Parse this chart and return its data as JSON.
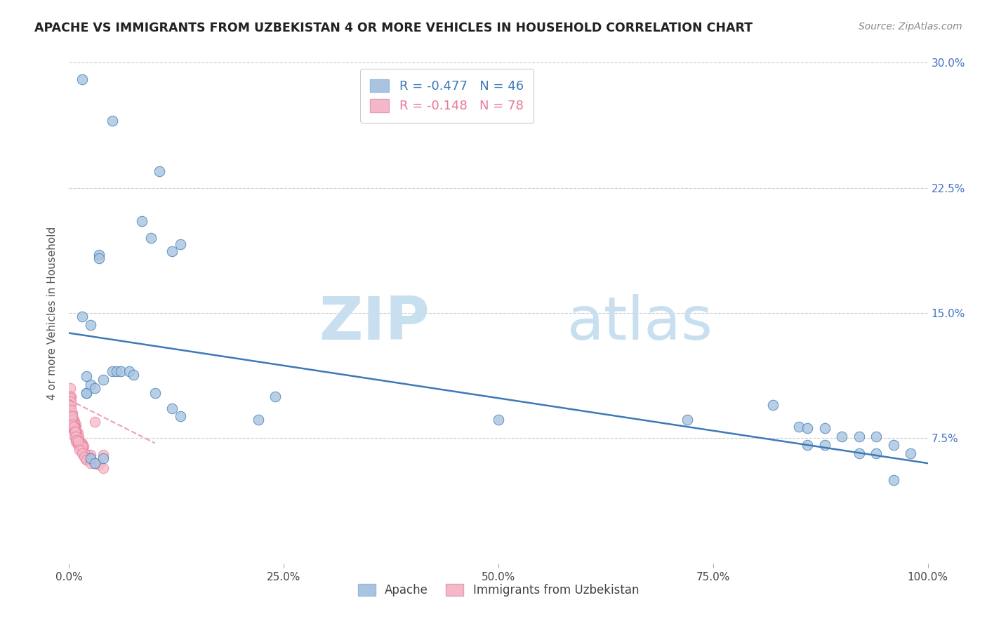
{
  "title": "APACHE VS IMMIGRANTS FROM UZBEKISTAN 4 OR MORE VEHICLES IN HOUSEHOLD CORRELATION CHART",
  "source": "Source: ZipAtlas.com",
  "ylabel": "4 or more Vehicles in Household",
  "xlim": [
    0.0,
    1.0
  ],
  "ylim": [
    0.0,
    0.3
  ],
  "xtick_labels": [
    "0.0%",
    "25.0%",
    "50.0%",
    "75.0%",
    "100.0%"
  ],
  "xtick_positions": [
    0.0,
    0.25,
    0.5,
    0.75,
    1.0
  ],
  "ytick_labels": [
    "7.5%",
    "15.0%",
    "22.5%",
    "30.0%"
  ],
  "ytick_positions": [
    0.075,
    0.15,
    0.225,
    0.3
  ],
  "legend_blue_label": "Apache",
  "legend_pink_label": "Immigrants from Uzbekistan",
  "blue_R": -0.477,
  "blue_N": 46,
  "pink_R": -0.148,
  "pink_N": 78,
  "blue_color": "#a8c4e0",
  "pink_color": "#f4b8c8",
  "blue_line_color": "#3d7ab5",
  "pink_line_color": "#e87a96",
  "watermark_zip": "ZIP",
  "watermark_atlas": "atlas",
  "watermark_color_zip": "#c8dff0",
  "watermark_color_atlas": "#c8dff0",
  "background_color": "#ffffff",
  "grid_color": "#cccccc",
  "blue_line_x0": 0.0,
  "blue_line_y0": 0.138,
  "blue_line_x1": 1.0,
  "blue_line_y1": 0.06,
  "pink_line_x0": 0.0,
  "pink_line_y0": 0.098,
  "pink_line_x1": 0.1,
  "pink_line_y1": 0.072,
  "blue_scatter_x": [
    0.025,
    0.05,
    0.085,
    0.095,
    0.105,
    0.12,
    0.13,
    0.02,
    0.02,
    0.025,
    0.03,
    0.035,
    0.035,
    0.04,
    0.05,
    0.055,
    0.06,
    0.07,
    0.075,
    0.1,
    0.12,
    0.13,
    0.22,
    0.24,
    0.5,
    0.72,
    0.82,
    0.85,
    0.86,
    0.88,
    0.92,
    0.94,
    0.96,
    0.98,
    0.86,
    0.88,
    0.9,
    0.92,
    0.94,
    0.96,
    0.015,
    0.02,
    0.025,
    0.03,
    0.04,
    0.015
  ],
  "blue_scatter_y": [
    0.143,
    0.265,
    0.205,
    0.195,
    0.235,
    0.187,
    0.191,
    0.102,
    0.102,
    0.107,
    0.105,
    0.185,
    0.183,
    0.11,
    0.115,
    0.115,
    0.115,
    0.115,
    0.113,
    0.102,
    0.093,
    0.088,
    0.086,
    0.1,
    0.086,
    0.086,
    0.095,
    0.082,
    0.071,
    0.071,
    0.066,
    0.066,
    0.071,
    0.066,
    0.081,
    0.081,
    0.076,
    0.076,
    0.076,
    0.05,
    0.29,
    0.112,
    0.063,
    0.06,
    0.063,
    0.148
  ],
  "pink_scatter_x": [
    0.001,
    0.001,
    0.002,
    0.002,
    0.003,
    0.003,
    0.004,
    0.004,
    0.005,
    0.005,
    0.005,
    0.006,
    0.006,
    0.007,
    0.007,
    0.008,
    0.008,
    0.009,
    0.009,
    0.01,
    0.01,
    0.011,
    0.011,
    0.012,
    0.013,
    0.013,
    0.014,
    0.015,
    0.016,
    0.017,
    0.018,
    0.019,
    0.02,
    0.022,
    0.025,
    0.03,
    0.04,
    0.006,
    0.008,
    0.01,
    0.012,
    0.015,
    0.018,
    0.02,
    0.025,
    0.03,
    0.035,
    0.04,
    0.007,
    0.008,
    0.009,
    0.01,
    0.011,
    0.013,
    0.015,
    0.003,
    0.004,
    0.005,
    0.006,
    0.001,
    0.001,
    0.002,
    0.002,
    0.003,
    0.003,
    0.004,
    0.004,
    0.005,
    0.006,
    0.007,
    0.008,
    0.009,
    0.01,
    0.012,
    0.015,
    0.018,
    0.02,
    0.025
  ],
  "pink_scatter_y": [
    0.105,
    0.1,
    0.1,
    0.095,
    0.09,
    0.085,
    0.09,
    0.085,
    0.086,
    0.083,
    0.08,
    0.085,
    0.08,
    0.082,
    0.08,
    0.083,
    0.079,
    0.075,
    0.073,
    0.078,
    0.073,
    0.075,
    0.073,
    0.073,
    0.072,
    0.07,
    0.072,
    0.072,
    0.07,
    0.07,
    0.065,
    0.063,
    0.062,
    0.065,
    0.065,
    0.085,
    0.065,
    0.076,
    0.073,
    0.071,
    0.07,
    0.068,
    0.066,
    0.063,
    0.062,
    0.06,
    0.059,
    0.057,
    0.082,
    0.08,
    0.078,
    0.076,
    0.074,
    0.072,
    0.07,
    0.088,
    0.086,
    0.084,
    0.082,
    0.099,
    0.097,
    0.097,
    0.092,
    0.088,
    0.086,
    0.088,
    0.083,
    0.082,
    0.079,
    0.079,
    0.076,
    0.074,
    0.073,
    0.068,
    0.066,
    0.064,
    0.062,
    0.06
  ]
}
